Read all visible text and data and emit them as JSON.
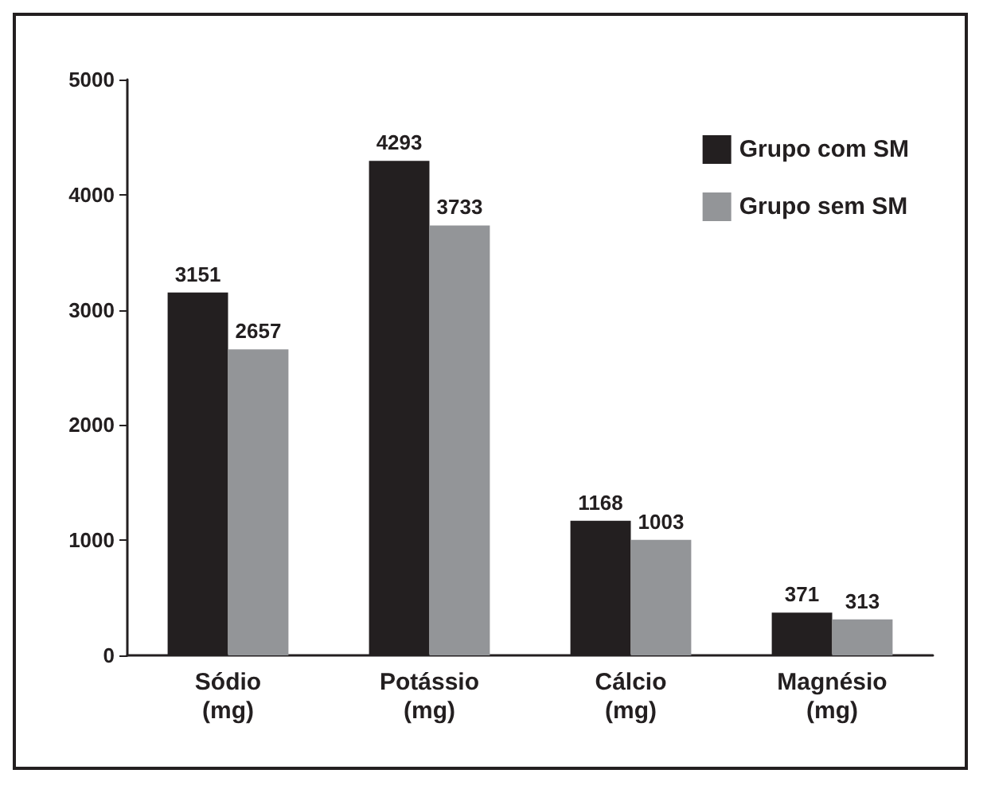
{
  "chart_data": {
    "type": "bar",
    "categories": [
      "Sódio\n(mg)",
      "Potássio\n(mg)",
      "Cálcio\n(mg)",
      "Magnésio\n(mg)"
    ],
    "series": [
      {
        "name": "Grupo com SM",
        "color": "#231f20",
        "values": [
          3151,
          4293,
          1168,
          371
        ]
      },
      {
        "name": "Grupo sem SM",
        "color": "#939598",
        "values": [
          2657,
          3733,
          1003,
          313
        ]
      }
    ],
    "ylim": [
      0,
      5000
    ],
    "yticks": [
      0,
      1000,
      2000,
      3000,
      4000,
      5000
    ],
    "grid": false,
    "legend": "top right",
    "data_labels": true
  }
}
